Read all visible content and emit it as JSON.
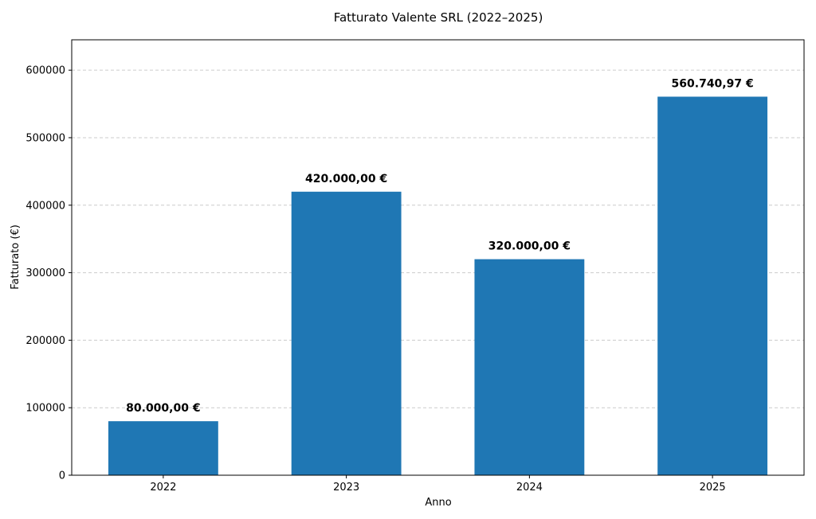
{
  "chart_data": {
    "type": "bar",
    "title": "Fatturato Valente SRL (2022–2025)",
    "xlabel": "Anno",
    "ylabel": "Fatturato (€)",
    "categories": [
      "2022",
      "2023",
      "2024",
      "2025"
    ],
    "values": [
      80000,
      420000,
      320000,
      560740.97
    ],
    "value_labels": [
      "80.000,00 €",
      "420.000,00 €",
      "320.000,00 €",
      "560.740,97 €"
    ],
    "ylim": [
      0,
      645000
    ],
    "yticks": [
      0,
      100000,
      200000,
      300000,
      400000,
      500000,
      600000
    ],
    "ytick_labels": [
      "0",
      "100000",
      "200000",
      "300000",
      "400000",
      "500000",
      "600000"
    ],
    "grid": "horizontal dashed",
    "bar_color": "#1f77b4",
    "grid_color": "#cccccc"
  }
}
